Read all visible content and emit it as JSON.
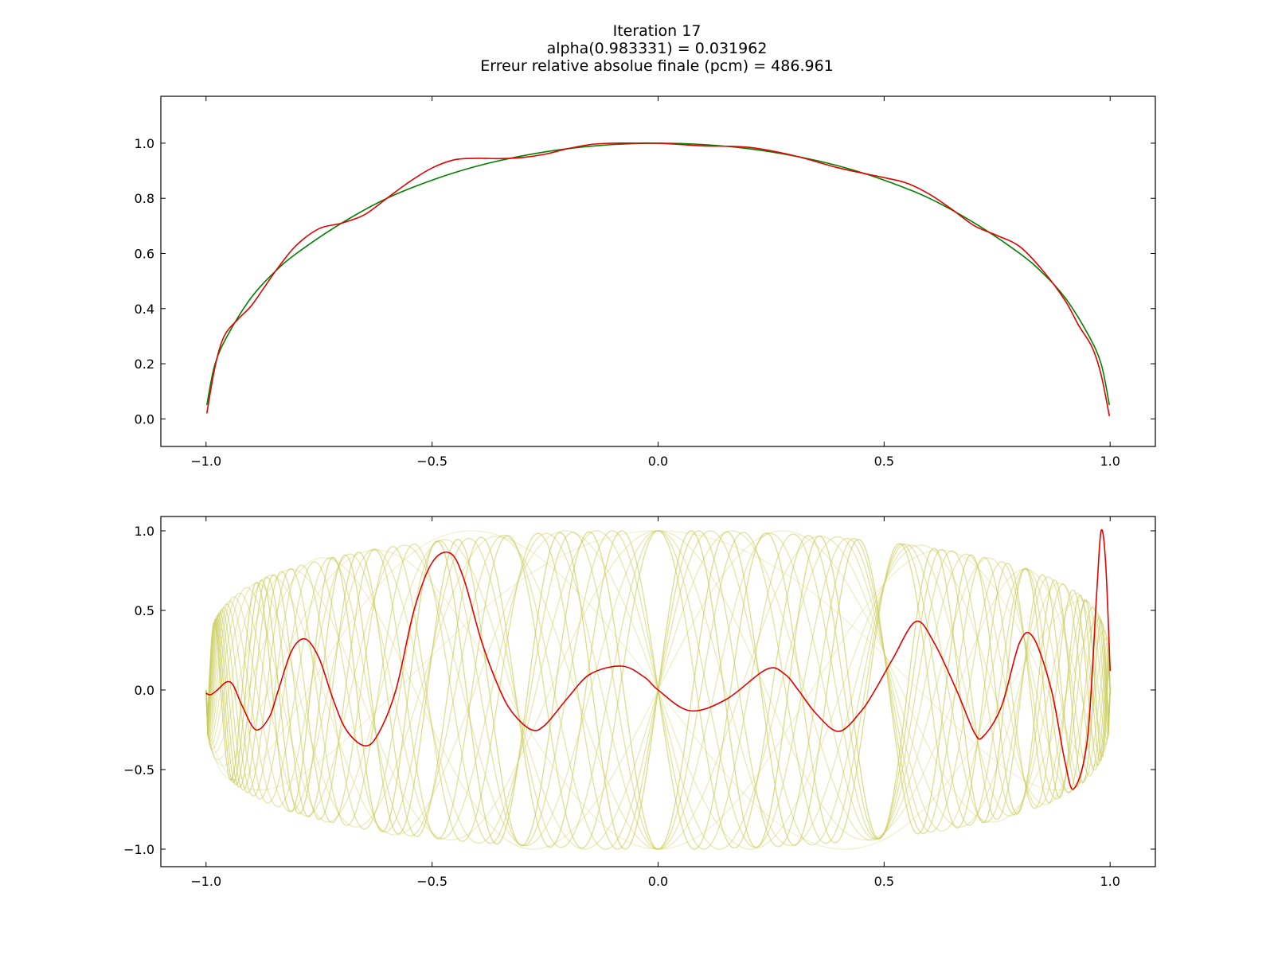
{
  "figure": {
    "title_lines": [
      "Iteration 17",
      "alpha(0.983331) = 0.031962",
      "Erreur relative absolue finale (pcm) = 486.961"
    ]
  },
  "chart_data": [
    {
      "type": "line",
      "xlim": [
        -1.1,
        1.1
      ],
      "ylim": [
        -0.1,
        1.17
      ],
      "xticks": [
        -1.0,
        -0.5,
        0.0,
        0.5,
        1.0
      ],
      "xtick_labels": [
        "−1.0",
        "−0.5",
        "0.0",
        "0.5",
        "1.0"
      ],
      "yticks": [
        0.0,
        0.2,
        0.4,
        0.6,
        0.8,
        1.0
      ],
      "ytick_labels": [
        "0.0",
        "0.2",
        "0.4",
        "0.6",
        "0.8",
        "1.0"
      ],
      "grid": false,
      "series": [
        {
          "color": "#007f00",
          "x": [
            -0.9983,
            -0.98,
            -0.95,
            -0.9,
            -0.85,
            -0.8,
            -0.7,
            -0.6,
            -0.5,
            -0.4,
            -0.3,
            -0.2,
            -0.1,
            0.0,
            0.1,
            0.2,
            0.3,
            0.4,
            0.5,
            0.6,
            0.7,
            0.8,
            0.85,
            0.9,
            0.95,
            0.98,
            0.9983
          ],
          "y": [
            0.05,
            0.2,
            0.31,
            0.44,
            0.53,
            0.6,
            0.71,
            0.8,
            0.866,
            0.917,
            0.954,
            0.98,
            0.995,
            1.0,
            0.995,
            0.98,
            0.954,
            0.917,
            0.866,
            0.8,
            0.71,
            0.6,
            0.53,
            0.44,
            0.31,
            0.2,
            0.05
          ]
        },
        {
          "color": "#e50000",
          "x": [
            -0.9983,
            -0.98,
            -0.96,
            -0.93,
            -0.9,
            -0.87,
            -0.84,
            -0.8,
            -0.75,
            -0.7,
            -0.65,
            -0.6,
            -0.55,
            -0.5,
            -0.45,
            -0.4,
            -0.35,
            -0.3,
            -0.25,
            -0.2,
            -0.15,
            -0.1,
            -0.05,
            0.0,
            0.05,
            0.1,
            0.2,
            0.3,
            0.4,
            0.5,
            0.55,
            0.6,
            0.65,
            0.7,
            0.75,
            0.8,
            0.85,
            0.9,
            0.93,
            0.96,
            0.98,
            0.9983
          ],
          "y": [
            0.02,
            0.19,
            0.3,
            0.36,
            0.41,
            0.48,
            0.55,
            0.63,
            0.69,
            0.71,
            0.74,
            0.8,
            0.86,
            0.91,
            0.94,
            0.945,
            0.944,
            0.948,
            0.96,
            0.98,
            0.995,
            1.0,
            1.0,
            1.0,
            0.995,
            0.99,
            0.985,
            0.955,
            0.91,
            0.875,
            0.855,
            0.815,
            0.76,
            0.7,
            0.665,
            0.625,
            0.54,
            0.43,
            0.34,
            0.26,
            0.16,
            0.01
          ]
        }
      ]
    },
    {
      "type": "line",
      "xlim": [
        -1.1,
        1.1
      ],
      "ylim": [
        -1.11,
        1.09
      ],
      "xticks": [
        -1.0,
        -0.5,
        0.0,
        0.5,
        1.0
      ],
      "xtick_labels": [
        "−1.0",
        "−0.5",
        "0.0",
        "0.5",
        "1.0"
      ],
      "yticks": [
        -1.0,
        -0.5,
        0.0,
        0.5,
        1.0
      ],
      "ytick_labels": [
        "−1.0",
        "−0.5",
        "0.0",
        "0.5",
        "1.0"
      ],
      "grid": false,
      "highlight": {
        "color": "#e50000",
        "x": [
          -1.0,
          -0.99,
          -0.975,
          -0.955,
          -0.94,
          -0.92,
          -0.89,
          -0.86,
          -0.84,
          -0.81,
          -0.78,
          -0.75,
          -0.72,
          -0.69,
          -0.65,
          -0.62,
          -0.58,
          -0.54,
          -0.5,
          -0.46,
          -0.43,
          -0.39,
          -0.35,
          -0.32,
          -0.28,
          -0.25,
          -0.2,
          -0.15,
          -0.08,
          -0.03,
          0.0,
          0.07,
          0.15,
          0.24,
          0.28,
          0.31,
          0.35,
          0.4,
          0.45,
          0.48,
          0.52,
          0.57,
          0.61,
          0.66,
          0.7,
          0.72,
          0.76,
          0.8,
          0.83,
          0.87,
          0.9,
          0.92,
          0.95,
          0.97,
          0.98,
          0.99,
          1.0
        ],
        "y": [
          -0.02,
          -0.03,
          0.0,
          0.05,
          0.03,
          -0.1,
          -0.25,
          -0.17,
          0.0,
          0.25,
          0.32,
          0.2,
          -0.05,
          -0.25,
          -0.35,
          -0.28,
          0.0,
          0.5,
          0.8,
          0.86,
          0.7,
          0.3,
          0.0,
          -0.15,
          -0.25,
          -0.22,
          -0.05,
          0.1,
          0.15,
          0.08,
          0.0,
          -0.13,
          -0.06,
          0.13,
          0.1,
          0.0,
          -0.15,
          -0.26,
          -0.13,
          0.0,
          0.2,
          0.43,
          0.3,
          0.0,
          -0.27,
          -0.29,
          -0.1,
          0.3,
          0.33,
          0.0,
          -0.45,
          -0.62,
          -0.3,
          0.6,
          1.0,
          0.8,
          0.12
        ]
      },
      "background_curves": {
        "color": "#c8cc55",
        "count": 20,
        "degree_range": [
          2,
          21
        ],
        "ymin": -1.0,
        "ymax": 1.0
      }
    }
  ]
}
